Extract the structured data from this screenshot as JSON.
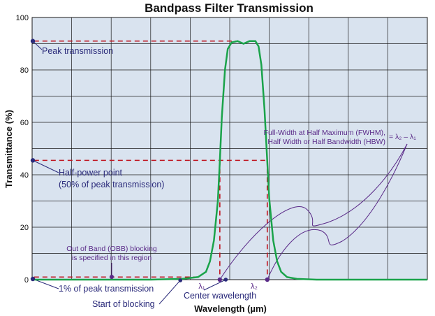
{
  "colors": {
    "plot_bg": "#d9e3ef",
    "grid": "#1a1a1a",
    "curve": "#1aa34a",
    "dashed": "#c0141f",
    "annotation_blue": "#2a2a7a",
    "annotation_purple": "#5a2a88"
  },
  "chart_data": {
    "type": "line",
    "title": "Bandpass Filter Transmission",
    "xlabel": "Wavelength (µm)",
    "ylabel": "Transmittance (%)",
    "ylim": [
      0,
      100
    ],
    "yticks": [
      "0",
      "20",
      "40",
      "60",
      "80",
      "100"
    ],
    "grid": true,
    "series": [
      {
        "points": [
          [
            0,
            0
          ],
          [
            30,
            0
          ],
          [
            38,
            0.3
          ],
          [
            42,
            1
          ],
          [
            44,
            3
          ],
          [
            45,
            7
          ],
          [
            46,
            15
          ],
          [
            47,
            30
          ],
          [
            47.5,
            45
          ],
          [
            48,
            62
          ],
          [
            48.8,
            80
          ],
          [
            49.5,
            88
          ],
          [
            50.5,
            90.5
          ],
          [
            52,
            91
          ],
          [
            53.5,
            90
          ],
          [
            55,
            91
          ],
          [
            56.5,
            91
          ],
          [
            57.3,
            89
          ],
          [
            58,
            82
          ],
          [
            58.8,
            65
          ],
          [
            59.5,
            45
          ],
          [
            60,
            31
          ],
          [
            61,
            15
          ],
          [
            62,
            7
          ],
          [
            63,
            3
          ],
          [
            64.5,
            1
          ],
          [
            67,
            0.3
          ],
          [
            72,
            0
          ],
          [
            100,
            0
          ]
        ]
      }
    ],
    "reference_lines": [
      {
        "label": "Peak transmission",
        "y": 91
      },
      {
        "label": "Half-power point",
        "y": 45.5,
        "x1": 47.5,
        "x2": 59.5
      },
      {
        "label": "1% of peak transmission",
        "y": 1
      }
    ],
    "x_markers": [
      {
        "label": "λ1",
        "x": 47.5
      },
      {
        "label": "Center wavelength",
        "x": 53.5
      },
      {
        "label": "λ2",
        "x": 59.5
      }
    ]
  },
  "annotations": {
    "peak": "Peak transmission",
    "half_power_line1": "Half-power point",
    "half_power_line2": "(50% of peak transmission)",
    "one_percent": "1% of peak transmission",
    "start_blocking": "Start of blocking",
    "center": "Center wavelength",
    "obb_line1": "Out of Band (OBB) blocking",
    "obb_line2": "is specified in this region",
    "fwhm_line1": "Full-Width at Half Maximum (FWHM),",
    "fwhm_line2": "Half Width or Half Bandwidth (HBW)",
    "fwhm_eq": "= λ₂ – λ₁",
    "lambda1": "λ₁",
    "lambda2": "λ₂"
  }
}
